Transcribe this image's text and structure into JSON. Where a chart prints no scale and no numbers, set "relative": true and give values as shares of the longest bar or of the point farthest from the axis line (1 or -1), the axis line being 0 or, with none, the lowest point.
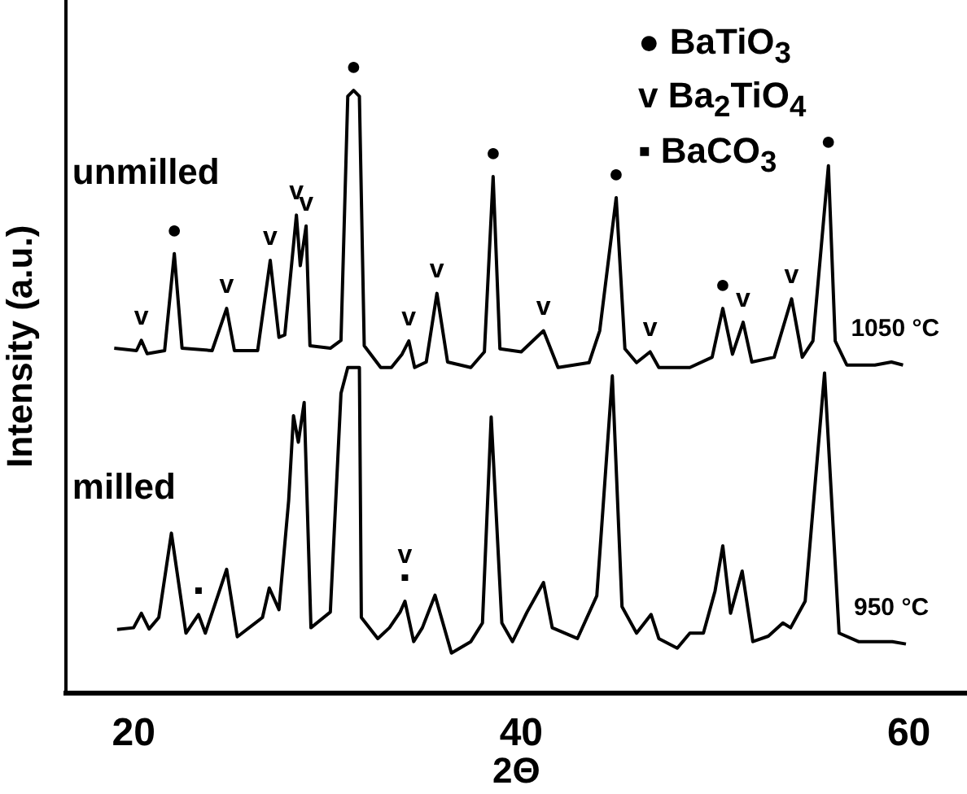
{
  "chart_data": {
    "type": "line",
    "relative": true,
    "xlabel": "2Θ",
    "ylabel": "Intensity (a.u.)",
    "xlim": [
      16.5,
      63
    ],
    "xticks": [
      20,
      40,
      60
    ],
    "grid": false,
    "legend": false,
    "marker": "none",
    "line_style": "solid",
    "series": [
      {
        "name": "unmilled",
        "color": "#000000",
        "x": [
          19.0,
          20.15,
          20.4,
          20.7,
          21.6,
          22.1,
          22.5,
          24.05,
          24.8,
          25.2,
          26.4,
          27.05,
          27.5,
          27.8,
          28.4,
          28.6,
          28.9,
          29.1,
          30.15,
          30.7,
          31.05,
          31.35,
          31.65,
          31.9,
          32.75,
          33.3,
          33.85,
          34.2,
          34.5,
          35.1,
          35.65,
          36.2,
          37.4,
          38.1,
          38.55,
          38.9,
          40.0,
          41.15,
          41.9,
          43.5,
          44.05,
          44.9,
          45.35,
          45.95,
          46.65,
          47.1,
          48.7,
          49.85,
          50.4,
          50.9,
          51.45,
          51.9,
          53.05,
          53.95,
          54.5,
          55.05,
          55.85,
          56.2,
          56.8,
          58.25,
          59.1,
          59.7
        ],
        "values": [
          0.572,
          0.568,
          0.585,
          0.563,
          0.568,
          0.729,
          0.572,
          0.568,
          0.638,
          0.568,
          0.568,
          0.718,
          0.59,
          0.594,
          0.793,
          0.709,
          0.775,
          0.576,
          0.572,
          0.585,
          0.99,
          1.0,
          0.99,
          0.576,
          0.54,
          0.54,
          0.562,
          0.584,
          0.54,
          0.549,
          0.663,
          0.549,
          0.54,
          0.566,
          0.857,
          0.571,
          0.566,
          0.601,
          0.54,
          0.548,
          0.601,
          0.822,
          0.571,
          0.548,
          0.566,
          0.54,
          0.54,
          0.557,
          0.638,
          0.562,
          0.615,
          0.549,
          0.557,
          0.654,
          0.557,
          0.584,
          0.875,
          0.584,
          0.544,
          0.544,
          0.549,
          0.544
        ]
      },
      {
        "name": "milled",
        "color": "#000000",
        "x": [
          19.15,
          20.0,
          20.4,
          20.8,
          21.3,
          21.95,
          22.7,
          23.35,
          23.7,
          24.8,
          25.35,
          26.65,
          27.0,
          27.5,
          28.0,
          28.25,
          28.5,
          28.8,
          29.15,
          30.15,
          30.7,
          31.05,
          31.65,
          31.75,
          32.6,
          33.2,
          33.75,
          34.0,
          34.45,
          34.9,
          35.55,
          36.4,
          37.4,
          38.0,
          38.45,
          39.0,
          39.55,
          40.3,
          41.15,
          41.6,
          42.9,
          43.9,
          44.7,
          45.2,
          45.95,
          46.7,
          47.1,
          48.05,
          48.7,
          49.4,
          50.0,
          50.4,
          50.8,
          51.4,
          51.95,
          52.75,
          53.5,
          53.9,
          54.65,
          55.65,
          56.4,
          57.4,
          59.15,
          59.85
        ],
        "values": [
          0.105,
          0.108,
          0.132,
          0.106,
          0.125,
          0.265,
          0.099,
          0.13,
          0.099,
          0.205,
          0.093,
          0.125,
          0.174,
          0.138,
          0.319,
          0.46,
          0.416,
          0.482,
          0.108,
          0.134,
          0.497,
          0.54,
          0.54,
          0.125,
          0.09,
          0.108,
          0.134,
          0.152,
          0.085,
          0.108,
          0.162,
          0.066,
          0.085,
          0.116,
          0.458,
          0.116,
          0.085,
          0.134,
          0.183,
          0.108,
          0.09,
          0.161,
          0.526,
          0.143,
          0.099,
          0.13,
          0.09,
          0.074,
          0.099,
          0.099,
          0.169,
          0.244,
          0.132,
          0.202,
          0.085,
          0.094,
          0.116,
          0.108,
          0.152,
          0.531,
          0.099,
          0.085,
          0.085,
          0.081
        ]
      }
    ],
    "annotations": [
      "● BaTiO$_{3}$",
      "v Ba$_{2}$TiO$_{4}$",
      "▪ BaCO$_{3}$",
      {
        "text": "1050 °C",
        "x": 59.7,
        "y": 0.544
      },
      {
        "text": "950 °C",
        "x": 59.85,
        "y": 0.081
      },
      {
        "text": "●",
        "x": 22.1,
        "y": 0.729
      },
      {
        "text": "●",
        "x": 31.35,
        "y": 1.0
      },
      {
        "text": "●",
        "x": 38.55,
        "y": 0.857
      },
      {
        "text": "●",
        "x": 44.9,
        "y": 0.822
      },
      {
        "text": "●",
        "x": 50.4,
        "y": 0.638
      },
      {
        "text": "●",
        "x": 55.85,
        "y": 0.875
      },
      {
        "text": "v",
        "x": 20.4,
        "y": 0.585
      },
      {
        "text": "v",
        "x": 24.8,
        "y": 0.638
      },
      {
        "text": "v",
        "x": 27.05,
        "y": 0.718
      },
      {
        "text": "v",
        "x": 28.4,
        "y": 0.793
      },
      {
        "text": "v",
        "x": 28.9,
        "y": 0.775
      },
      {
        "text": "v",
        "x": 34.2,
        "y": 0.584
      },
      {
        "text": "v",
        "x": 35.65,
        "y": 0.663
      },
      {
        "text": "v",
        "x": 41.15,
        "y": 0.601
      },
      {
        "text": "v",
        "x": 46.65,
        "y": 0.566
      },
      {
        "text": "v",
        "x": 51.45,
        "y": 0.615
      },
      {
        "text": "v",
        "x": 53.95,
        "y": 0.654
      },
      {
        "text": "▪",
        "x": 23.35,
        "y": 0.13
      },
      {
        "text": "▪",
        "x": 34.0,
        "y": 0.152
      },
      {
        "text": "v",
        "x": 34.0,
        "y": 0.152
      }
    ]
  }
}
